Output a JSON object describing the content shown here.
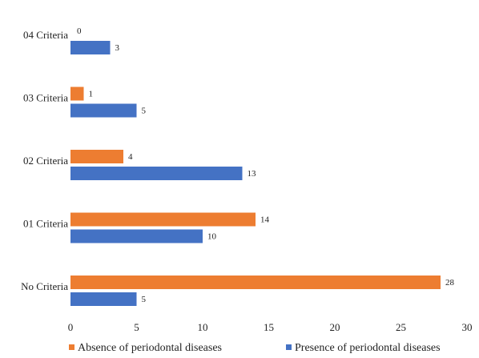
{
  "chart_data": {
    "type": "bar",
    "orientation": "horizontal",
    "categories": [
      "04 Criteria",
      "03 Criteria",
      "02 Criteria",
      "01 Criteria",
      "No Criteria"
    ],
    "series": [
      {
        "name": "Absence of periodontal diseases",
        "color": "#ED7D31",
        "values": [
          0,
          1,
          4,
          14,
          28
        ]
      },
      {
        "name": "Presence of periodontal diseases",
        "color": "#4472C4",
        "values": [
          3,
          5,
          13,
          10,
          5
        ]
      }
    ],
    "xlim": [
      0,
      30
    ],
    "xticks": [
      0,
      5,
      10,
      15,
      20,
      25,
      30
    ],
    "grid": false,
    "legend_position": "bottom",
    "title": "",
    "xlabel": "",
    "ylabel": ""
  }
}
